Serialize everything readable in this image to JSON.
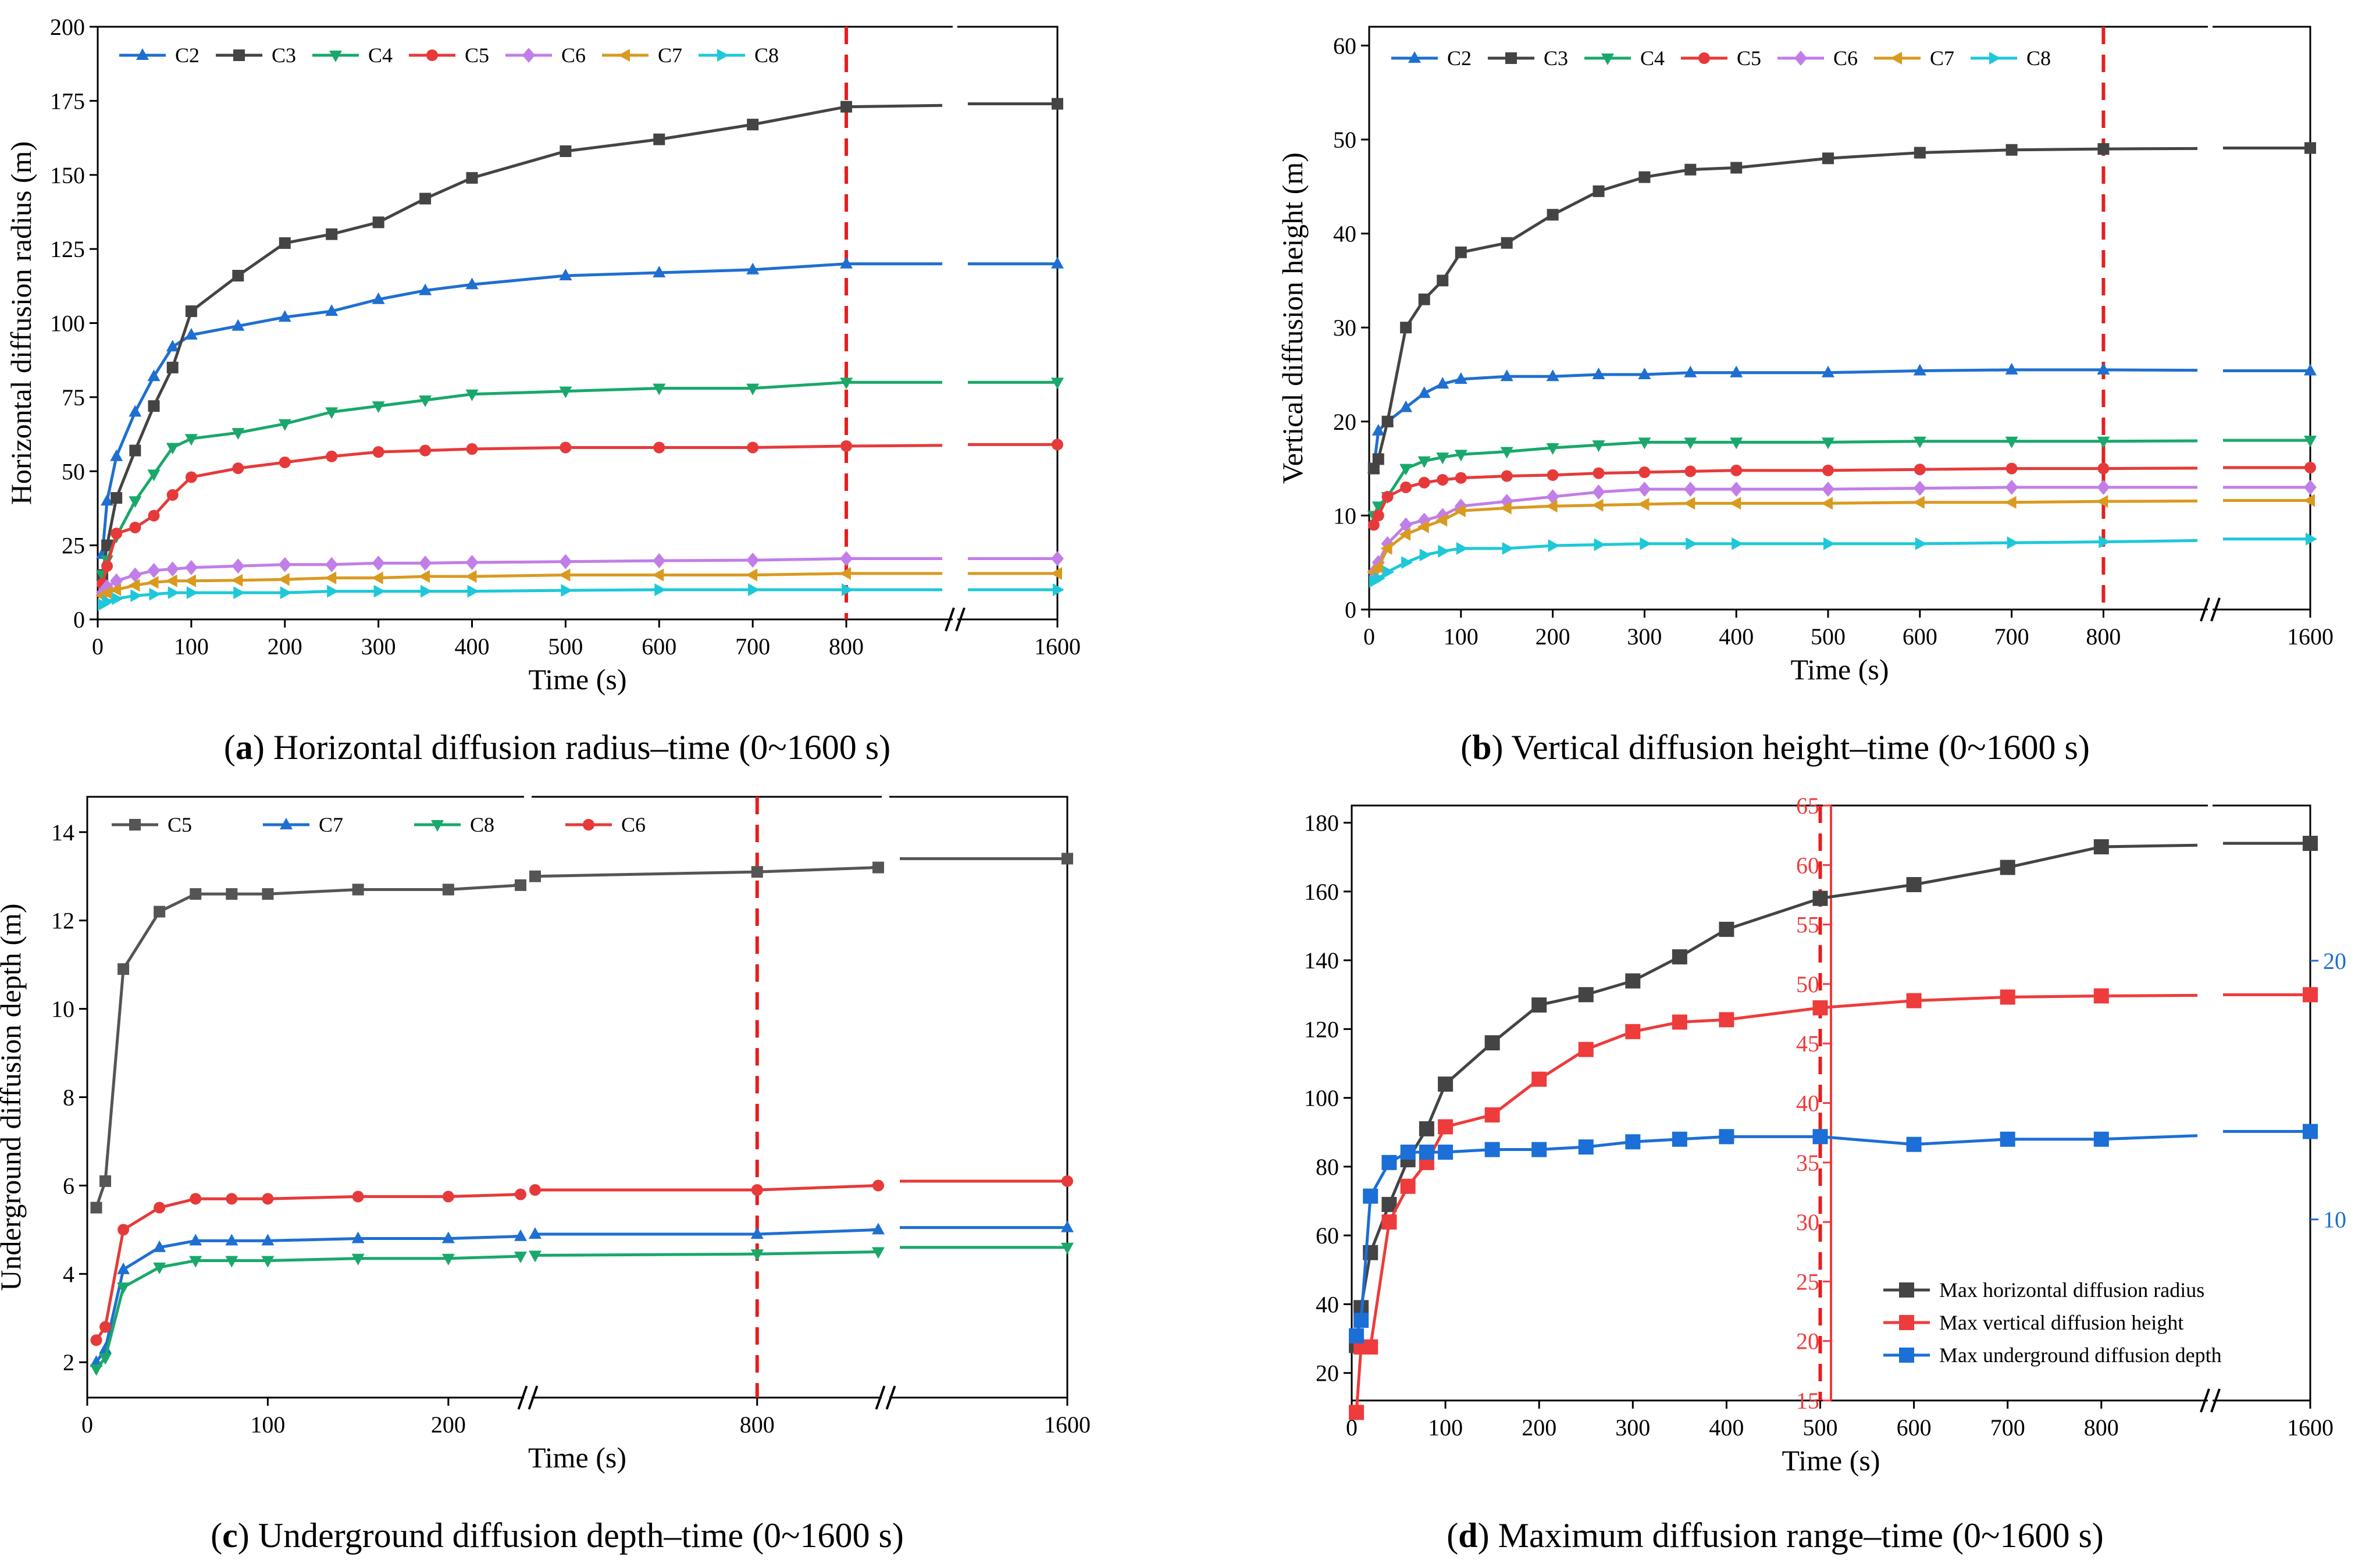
{
  "chart_data": [
    {
      "type": "line",
      "caption_letter": "a",
      "caption_text": " Horizontal diffusion radius–time (0~1600 s)",
      "xlabel": "Time (s)",
      "ylabel": "Horizontal diffusion radius (m)",
      "ylim": [
        0,
        200
      ],
      "yticks": [
        0,
        25,
        50,
        75,
        100,
        125,
        150,
        175,
        200
      ],
      "xticks": [
        0,
        100,
        200,
        300,
        400,
        500,
        600,
        700,
        800,
        1600
      ],
      "axis_break": "between 800 and 1600",
      "reference_line_x": 800,
      "grid": false,
      "legend": "top",
      "series": [
        {
          "name": "C2",
          "color": "#1f6fd1",
          "marker": "triangle-up",
          "x": [
            5,
            10,
            20,
            40,
            60,
            80,
            100,
            150,
            200,
            250,
            300,
            350,
            400,
            500,
            600,
            700,
            800,
            1000,
            1600
          ],
          "y": [
            22,
            40,
            55,
            70,
            82,
            92,
            96,
            99,
            102,
            104,
            108,
            111,
            113,
            116,
            117,
            118,
            120,
            120,
            120
          ]
        },
        {
          "name": "C3",
          "color": "#444444",
          "marker": "square",
          "x": [
            5,
            10,
            20,
            40,
            60,
            80,
            100,
            150,
            200,
            250,
            300,
            350,
            400,
            500,
            600,
            700,
            800,
            1000,
            1600
          ],
          "y": [
            15,
            25,
            41,
            57,
            72,
            85,
            104,
            116,
            127,
            130,
            134,
            142,
            149,
            158,
            162,
            167,
            173,
            173,
            174
          ]
        },
        {
          "name": "C4",
          "color": "#1aa86a",
          "marker": "triangle-down",
          "x": [
            5,
            10,
            20,
            40,
            60,
            80,
            100,
            150,
            200,
            250,
            300,
            350,
            400,
            500,
            600,
            700,
            800,
            1000,
            1600
          ],
          "y": [
            15,
            20,
            28,
            40,
            49,
            58,
            61,
            63,
            66,
            70,
            72,
            74,
            76,
            77,
            78,
            78,
            80,
            80,
            80
          ]
        },
        {
          "name": "C5",
          "color": "#e63a3a",
          "marker": "circle",
          "x": [
            5,
            10,
            20,
            40,
            60,
            80,
            100,
            150,
            200,
            250,
            300,
            350,
            400,
            500,
            600,
            700,
            800,
            1000,
            1600
          ],
          "y": [
            12,
            18,
            29,
            31,
            35,
            42,
            48,
            51,
            53,
            55,
            56.5,
            57,
            57.5,
            58,
            58,
            58,
            58.5,
            58.5,
            59
          ]
        },
        {
          "name": "C6",
          "color": "#c27ee8",
          "marker": "diamond",
          "x": [
            5,
            10,
            20,
            40,
            60,
            80,
            100,
            150,
            200,
            250,
            300,
            350,
            400,
            500,
            600,
            700,
            800,
            1000,
            1600
          ],
          "y": [
            9,
            11,
            13,
            15,
            16.5,
            17,
            17.5,
            18,
            18.5,
            18.5,
            19,
            19,
            19.2,
            19.5,
            19.8,
            20,
            20.5,
            20.5,
            20.5
          ]
        },
        {
          "name": "C7",
          "color": "#d99a20",
          "marker": "triangle-left",
          "x": [
            5,
            10,
            20,
            40,
            60,
            80,
            100,
            150,
            200,
            250,
            300,
            350,
            400,
            500,
            600,
            700,
            800,
            1000,
            1600
          ],
          "y": [
            8,
            9,
            10,
            11.5,
            12.5,
            13,
            13,
            13.2,
            13.5,
            14,
            14,
            14.5,
            14.5,
            15,
            15,
            15,
            15.5,
            15.5,
            15.5
          ]
        },
        {
          "name": "C8",
          "color": "#1ec8d8",
          "marker": "triangle-right",
          "x": [
            5,
            10,
            20,
            40,
            60,
            80,
            100,
            150,
            200,
            250,
            300,
            350,
            400,
            500,
            600,
            700,
            800,
            1000,
            1600
          ],
          "y": [
            5,
            6,
            7,
            8,
            8.5,
            9,
            9,
            9,
            9,
            9.5,
            9.5,
            9.5,
            9.5,
            9.8,
            10,
            10,
            10,
            10,
            10
          ]
        }
      ]
    },
    {
      "type": "line",
      "caption_letter": "b",
      "caption_text": " Vertical diffusion height–time (0~1600 s)",
      "xlabel": "Time (s)",
      "ylabel": "Vertical diffusion height (m)",
      "ylim": [
        0,
        62
      ],
      "yticks": [
        0,
        10,
        20,
        30,
        40,
        50,
        60
      ],
      "xticks": [
        0,
        100,
        200,
        300,
        400,
        500,
        600,
        700,
        800,
        1600
      ],
      "axis_break": "between 800 and 1600",
      "reference_line_x": 800,
      "grid": false,
      "legend": "top",
      "series": [
        {
          "name": "C2",
          "color": "#1f6fd1",
          "marker": "triangle-up",
          "x": [
            5,
            10,
            20,
            40,
            60,
            80,
            100,
            150,
            200,
            250,
            300,
            350,
            400,
            500,
            600,
            700,
            800,
            1000,
            1600
          ],
          "y": [
            15,
            19,
            20,
            21.5,
            23,
            24,
            24.5,
            24.8,
            24.8,
            25,
            25,
            25.2,
            25.2,
            25.2,
            25.4,
            25.5,
            25.5,
            25.5,
            25.4
          ]
        },
        {
          "name": "C3",
          "color": "#444444",
          "marker": "square",
          "x": [
            5,
            10,
            20,
            40,
            60,
            80,
            100,
            150,
            200,
            250,
            300,
            350,
            400,
            500,
            600,
            700,
            800,
            1000,
            1600
          ],
          "y": [
            15,
            16,
            20,
            30,
            33,
            35,
            38,
            39,
            42,
            44.5,
            46,
            46.8,
            47,
            48,
            48.6,
            48.9,
            49,
            49.1,
            49.1
          ]
        },
        {
          "name": "C4",
          "color": "#1aa86a",
          "marker": "triangle-down",
          "x": [
            5,
            10,
            20,
            40,
            60,
            80,
            100,
            150,
            200,
            250,
            300,
            350,
            400,
            500,
            600,
            700,
            800,
            1000,
            1600
          ],
          "y": [
            10,
            11,
            12,
            15,
            15.8,
            16.2,
            16.5,
            16.8,
            17.2,
            17.5,
            17.8,
            17.8,
            17.8,
            17.8,
            17.9,
            17.9,
            17.9,
            18,
            18
          ]
        },
        {
          "name": "C5",
          "color": "#e63a3a",
          "marker": "circle",
          "x": [
            5,
            10,
            20,
            40,
            60,
            80,
            100,
            150,
            200,
            250,
            300,
            350,
            400,
            500,
            600,
            700,
            800,
            1000,
            1600
          ],
          "y": [
            9,
            10,
            12,
            13,
            13.5,
            13.8,
            14,
            14.2,
            14.3,
            14.5,
            14.6,
            14.7,
            14.8,
            14.8,
            14.9,
            15,
            15,
            15,
            15.1
          ]
        },
        {
          "name": "C6",
          "color": "#c27ee8",
          "marker": "diamond",
          "x": [
            5,
            10,
            20,
            40,
            60,
            80,
            100,
            150,
            200,
            250,
            300,
            350,
            400,
            500,
            600,
            700,
            800,
            1000,
            1600
          ],
          "y": [
            4,
            5,
            7,
            9,
            9.5,
            10,
            11,
            11.5,
            12,
            12.5,
            12.8,
            12.8,
            12.8,
            12.8,
            12.9,
            13,
            13,
            13,
            13
          ]
        },
        {
          "name": "C7",
          "color": "#d99a20",
          "marker": "triangle-left",
          "x": [
            5,
            10,
            20,
            40,
            60,
            80,
            100,
            150,
            200,
            250,
            300,
            350,
            400,
            500,
            600,
            700,
            800,
            1000,
            1600
          ],
          "y": [
            4,
            4.5,
            6.5,
            8,
            8.8,
            9.5,
            10.5,
            10.8,
            11,
            11.1,
            11.2,
            11.3,
            11.3,
            11.3,
            11.4,
            11.4,
            11.5,
            11.5,
            11.6
          ]
        },
        {
          "name": "C8",
          "color": "#1ec8d8",
          "marker": "triangle-right",
          "x": [
            5,
            10,
            20,
            40,
            60,
            80,
            100,
            150,
            200,
            250,
            300,
            350,
            400,
            500,
            600,
            700,
            800,
            1000,
            1600
          ],
          "y": [
            3,
            3.3,
            4,
            5,
            5.8,
            6.2,
            6.5,
            6.5,
            6.8,
            6.9,
            7,
            7,
            7,
            7,
            7,
            7.1,
            7.2,
            7.3,
            7.5
          ]
        }
      ]
    },
    {
      "type": "line",
      "caption_letter": "c",
      "caption_text": " Underground diffusion depth–time (0~1600 s)",
      "xlabel": "Time (s)",
      "ylabel": "Underground diffusion depth (m)",
      "ylim": [
        1.2,
        14.8
      ],
      "yticks": [
        2,
        4,
        6,
        8,
        10,
        12,
        14
      ],
      "xticks": [
        0,
        100,
        200,
        800,
        1600
      ],
      "axis_break": "two breaks: after ~240 and before 1600",
      "reference_line_x": 800,
      "grid": false,
      "legend": "top",
      "series": [
        {
          "name": "C5",
          "color": "#555555",
          "marker": "square",
          "x": [
            5,
            10,
            20,
            40,
            60,
            80,
            100,
            150,
            200,
            240,
            250,
            800,
            1100,
            1600
          ],
          "y": [
            5.5,
            6.1,
            10.9,
            12.2,
            12.6,
            12.6,
            12.6,
            12.7,
            12.7,
            12.8,
            13,
            13.1,
            13.2,
            13.4
          ]
        },
        {
          "name": "C7",
          "color": "#1f6fd1",
          "marker": "triangle-up",
          "x": [
            5,
            10,
            20,
            40,
            60,
            80,
            100,
            150,
            200,
            240,
            250,
            800,
            1100,
            1600
          ],
          "y": [
            2.0,
            2.3,
            4.1,
            4.6,
            4.75,
            4.75,
            4.75,
            4.8,
            4.8,
            4.85,
            4.9,
            4.9,
            5.0,
            5.05
          ]
        },
        {
          "name": "C8",
          "color": "#1aa86a",
          "marker": "triangle-down",
          "x": [
            5,
            10,
            20,
            40,
            60,
            80,
            100,
            150,
            200,
            240,
            250,
            800,
            1100,
            1600
          ],
          "y": [
            1.85,
            2.1,
            3.7,
            4.15,
            4.3,
            4.3,
            4.3,
            4.35,
            4.35,
            4.4,
            4.42,
            4.45,
            4.5,
            4.6
          ]
        },
        {
          "name": "C6",
          "color": "#e63a3a",
          "marker": "circle",
          "x": [
            5,
            10,
            20,
            40,
            60,
            80,
            100,
            150,
            200,
            240,
            250,
            800,
            1100,
            1600
          ],
          "y": [
            2.5,
            2.8,
            5.0,
            5.5,
            5.7,
            5.7,
            5.7,
            5.75,
            5.75,
            5.8,
            5.9,
            5.9,
            6.0,
            6.1
          ]
        }
      ]
    },
    {
      "type": "line",
      "caption_letter": "d",
      "caption_text": " Maximum diffusion range–time (0~1600 s)",
      "xlabel": "Time (s)",
      "ylim_left": [
        12,
        185
      ],
      "yticks_left": [
        20,
        40,
        60,
        80,
        100,
        120,
        140,
        160,
        180
      ],
      "ylim_mid": [
        15,
        65
      ],
      "yticks_mid": [
        15,
        20,
        25,
        30,
        35,
        40,
        45,
        50,
        55,
        60,
        65
      ],
      "ylim_right": [
        3,
        26
      ],
      "yticks_right": [
        10,
        20
      ],
      "xticks": [
        0,
        100,
        200,
        300,
        400,
        500,
        600,
        700,
        800,
        1600
      ],
      "axis_break": "between 800 and 1600",
      "reference_line_x": 500,
      "grid": false,
      "legend": "bottom-right",
      "series": [
        {
          "name": "Max horizontal diffusion radius",
          "color": "#444444",
          "marker": "square",
          "axis": "left",
          "x": [
            5,
            10,
            20,
            40,
            60,
            80,
            100,
            150,
            200,
            250,
            300,
            350,
            400,
            500,
            600,
            700,
            800,
            1000,
            1600
          ],
          "y": [
            28,
            39,
            55,
            69,
            82,
            91,
            104,
            116,
            127,
            130,
            134,
            141,
            149,
            158,
            162,
            167,
            173,
            173,
            174
          ]
        },
        {
          "name": "Max vertical diffusion height",
          "color": "#ee3b3b",
          "marker": "square",
          "axis": "mid",
          "x": [
            5,
            10,
            20,
            40,
            60,
            80,
            100,
            150,
            200,
            250,
            300,
            350,
            400,
            500,
            600,
            700,
            800,
            1000,
            1600
          ],
          "y": [
            14,
            19.5,
            19.5,
            30,
            33,
            35,
            38,
            39,
            42,
            44.5,
            46,
            46.8,
            47,
            48,
            48.6,
            48.9,
            49,
            49.1,
            49.1
          ]
        },
        {
          "name": "Max underground diffusion depth",
          "color": "#1b6fd6",
          "marker": "square",
          "axis": "right",
          "x": [
            5,
            10,
            20,
            40,
            60,
            80,
            100,
            150,
            200,
            250,
            300,
            350,
            400,
            500,
            600,
            700,
            800,
            1000,
            1600
          ],
          "y": [
            5.5,
            6.1,
            10.9,
            12.2,
            12.6,
            12.6,
            12.6,
            12.7,
            12.7,
            12.8,
            13,
            13.1,
            13.2,
            13.2,
            12.9,
            13.1,
            13.1,
            13.4,
            13.4
          ]
        }
      ]
    }
  ]
}
